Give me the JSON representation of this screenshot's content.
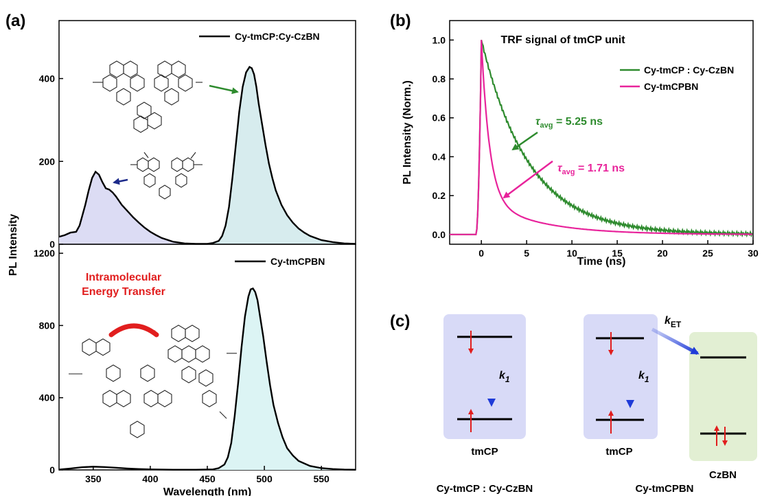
{
  "panels": {
    "a": "(a)",
    "b": "(b)",
    "c": "(c)"
  },
  "colors": {
    "green": "#2e8b2e",
    "pink": "#e8239b",
    "blue": "#1f3bd8",
    "red": "#e11e1e",
    "navy": "#1c2a8a",
    "fill_blue": "#dcdcf4",
    "fill_teal": "#d7ecee",
    "fill_cyan": "#dcf4f4",
    "box_blue": "#d8daf7",
    "box_green": "#e2efd3"
  },
  "chart_data": [
    {
      "id": "a-top",
      "type": "line",
      "legend": [
        "Cy-tmCP:Cy-CzBN"
      ],
      "ylim": [
        0,
        540
      ],
      "xlim": [
        320,
        580
      ],
      "y_ticks": [
        0,
        200,
        400
      ],
      "series": [
        {
          "name": "Cy-tmCP:Cy-CzBN",
          "x": [
            320,
            325,
            330,
            335,
            338,
            340,
            343,
            346,
            349,
            352,
            355,
            358,
            361,
            364,
            367,
            370,
            375,
            380,
            385,
            390,
            395,
            400,
            405,
            410,
            420,
            430,
            440,
            450,
            455,
            460,
            463,
            466,
            469,
            472,
            475,
            478,
            481,
            484,
            487,
            489,
            491,
            493,
            495,
            498,
            501,
            504,
            507,
            510,
            515,
            520,
            525,
            530,
            535,
            540,
            550,
            560,
            570,
            580
          ],
          "y": [
            18,
            22,
            28,
            30,
            45,
            65,
            95,
            130,
            160,
            175,
            168,
            150,
            135,
            132,
            125,
            115,
            95,
            80,
            65,
            52,
            40,
            30,
            22,
            15,
            6,
            2,
            1,
            1,
            3,
            8,
            20,
            45,
            90,
            160,
            240,
            320,
            380,
            415,
            428,
            425,
            410,
            380,
            340,
            290,
            240,
            195,
            160,
            130,
            95,
            70,
            52,
            38,
            28,
            20,
            10,
            5,
            2,
            1
          ]
        }
      ],
      "annotations": [
        {
          "text": "",
          "arrow_color": "#2e8b2e"
        },
        {
          "text": "",
          "arrow_color": "#1c2a8a"
        }
      ]
    },
    {
      "id": "a-bottom",
      "type": "line",
      "legend": [
        "Cy-tmCPBN"
      ],
      "xlabel": "Wavelength (nm)",
      "ylabel": "PL Intensity",
      "ylim": [
        0,
        1250
      ],
      "xlim": [
        320,
        580
      ],
      "x_ticks": [
        350,
        400,
        450,
        500,
        550
      ],
      "y_ticks": [
        0,
        400,
        800,
        1200
      ],
      "series": [
        {
          "name": "Cy-tmCPBN",
          "x": [
            320,
            330,
            340,
            350,
            360,
            370,
            380,
            390,
            400,
            420,
            440,
            455,
            460,
            465,
            468,
            471,
            474,
            477,
            480,
            483,
            486,
            488,
            490,
            492,
            494,
            496,
            499,
            502,
            505,
            508,
            512,
            516,
            520,
            525,
            530,
            540,
            550,
            560,
            570,
            580
          ],
          "y": [
            2,
            8,
            15,
            18,
            16,
            12,
            8,
            5,
            3,
            1,
            1,
            3,
            10,
            30,
            70,
            150,
            300,
            480,
            680,
            850,
            960,
            1000,
            1005,
            985,
            940,
            860,
            740,
            600,
            470,
            360,
            260,
            180,
            120,
            80,
            50,
            22,
            10,
            5,
            2,
            1
          ]
        }
      ],
      "text_annotation": [
        "Intramolecular",
        "Energy Transfer"
      ]
    },
    {
      "id": "b",
      "type": "line",
      "title": "TRF signal of tmCP unit",
      "xlabel": "Time (ns)",
      "ylabel": "PL Intensity (Norm.)",
      "xlim": [
        -3.5,
        30
      ],
      "ylim": [
        -0.05,
        1.1
      ],
      "x_ticks": [
        0,
        5,
        10,
        15,
        20,
        25,
        30
      ],
      "y_ticks": [
        0.0,
        0.2,
        0.4,
        0.6,
        0.8,
        1.0
      ],
      "legend": [
        "Cy-tmCP : Cy-CzBN",
        "Cy-tmCPBN"
      ],
      "series": [
        {
          "name": "Cy-tmCP : Cy-CzBN",
          "tau": 5.25,
          "label": "5.25 ns"
        },
        {
          "name": "Cy-tmCPBN",
          "tau": 1.71,
          "label": "1.71 ns"
        }
      ],
      "annotations": [
        {
          "prefix": "τ",
          "sub": "avg",
          "value": " = 5.25 ns"
        },
        {
          "prefix": "τ",
          "sub": "avg",
          "value": " = 1.71 ns"
        }
      ]
    }
  ],
  "diagram_c": {
    "left": {
      "box_label": "tmCP",
      "rate": "k",
      "rate_sub": "1",
      "caption": "Cy-tmCP : Cy-CzBN"
    },
    "right": {
      "box_label": "tmCP",
      "rate": "k",
      "rate_sub": "1",
      "et": "k",
      "et_sub": "ET",
      "acceptor_label": "CzBN",
      "caption": "Cy-tmCPBN"
    }
  }
}
